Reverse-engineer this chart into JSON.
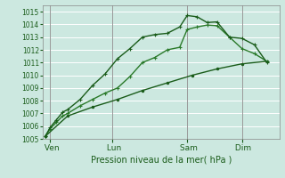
{
  "xlabel": "Pression niveau de la mer( hPa )",
  "background_color": "#cce8e0",
  "grid_color": "#b0d8d0",
  "line_color_dark": "#1a5c1a",
  "line_color_mid": "#2a7a2a",
  "line_color_light": "#3a9a3a",
  "ylim": [
    1005,
    1015.5
  ],
  "yticks": [
    1005,
    1006,
    1007,
    1008,
    1009,
    1010,
    1011,
    1012,
    1013,
    1014,
    1015
  ],
  "xlim": [
    0,
    9.5
  ],
  "day_labels": [
    " Ven",
    " Lun",
    " Sam",
    " Dim"
  ],
  "day_positions": [
    0.3,
    2.8,
    5.8,
    8.0
  ],
  "series1_x": [
    0.1,
    0.3,
    0.55,
    0.8,
    1.0,
    1.5,
    2.0,
    2.5,
    3.0,
    3.5,
    4.0,
    4.5,
    5.0,
    5.5,
    5.8,
    6.2,
    6.6,
    7.0,
    7.5,
    8.0,
    8.5,
    9.0
  ],
  "series1_y": [
    1005.2,
    1005.9,
    1006.5,
    1007.1,
    1007.3,
    1008.1,
    1009.2,
    1010.1,
    1011.3,
    1012.1,
    1013.0,
    1013.2,
    1013.3,
    1013.8,
    1014.7,
    1014.6,
    1014.15,
    1014.2,
    1013.0,
    1012.9,
    1012.4,
    1011.0
  ],
  "series2_x": [
    0.1,
    0.3,
    0.55,
    0.8,
    1.0,
    1.5,
    2.0,
    2.5,
    3.0,
    3.5,
    4.0,
    4.5,
    5.0,
    5.5,
    5.8,
    6.2,
    6.6,
    7.0,
    7.5,
    8.0,
    8.5,
    9.0
  ],
  "series2_y": [
    1005.2,
    1005.8,
    1006.3,
    1006.8,
    1007.0,
    1007.6,
    1008.1,
    1008.6,
    1009.0,
    1009.9,
    1011.0,
    1011.4,
    1012.0,
    1012.2,
    1013.6,
    1013.8,
    1013.95,
    1013.9,
    1013.0,
    1012.1,
    1011.7,
    1011.1
  ],
  "series3_x": [
    0.1,
    1.0,
    2.0,
    3.0,
    4.0,
    5.0,
    6.0,
    7.0,
    8.0,
    9.0
  ],
  "series3_y": [
    1005.2,
    1006.8,
    1007.5,
    1008.1,
    1008.8,
    1009.4,
    1010.0,
    1010.5,
    1010.9,
    1011.1
  ],
  "vline_positions": [
    0.3,
    2.8,
    5.8,
    8.0
  ],
  "marker_size": 3.5,
  "line_width": 1.0
}
